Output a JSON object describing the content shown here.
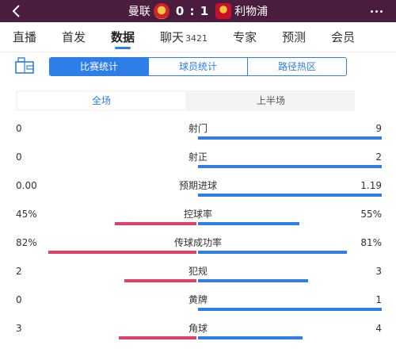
{
  "header": {
    "home_team": "曼联",
    "score": "0 : 1",
    "away_team": "利物浦"
  },
  "tabs": [
    {
      "label": "直播"
    },
    {
      "label": "首发"
    },
    {
      "label": "数据"
    },
    {
      "label": "聊天",
      "count": "3421"
    },
    {
      "label": "专家"
    },
    {
      "label": "预测"
    },
    {
      "label": "会员"
    }
  ],
  "segments": [
    "比赛统计",
    "球员统计",
    "路径热区"
  ],
  "periods": [
    "全场",
    "上半场"
  ],
  "colors": {
    "home_bar": "#e0406a",
    "away_bar": "#2d7ee8",
    "accent": "#2d7ee8",
    "header_bg": "#4a1c3d"
  },
  "stats": [
    {
      "name": "射门",
      "home": "0",
      "away": "9",
      "home_share": 0,
      "away_share": 1
    },
    {
      "name": "射正",
      "home": "0",
      "away": "2",
      "home_share": 0,
      "away_share": 1
    },
    {
      "name": "预期进球",
      "home": "0.00",
      "away": "1.19",
      "home_share": 0,
      "away_share": 1
    },
    {
      "name": "控球率",
      "home": "45%",
      "away": "55%",
      "home_share": 0.45,
      "away_share": 0.55
    },
    {
      "name": "传球成功率",
      "home": "82%",
      "away": "81%",
      "home_share": 0.82,
      "away_share": 0.81
    },
    {
      "name": "犯规",
      "home": "2",
      "away": "3",
      "home_share": 0.4,
      "away_share": 0.6
    },
    {
      "name": "黄牌",
      "home": "0",
      "away": "1",
      "home_share": 0,
      "away_share": 1
    },
    {
      "name": "角球",
      "home": "3",
      "away": "4",
      "home_share": 0.43,
      "away_share": 0.57
    }
  ]
}
